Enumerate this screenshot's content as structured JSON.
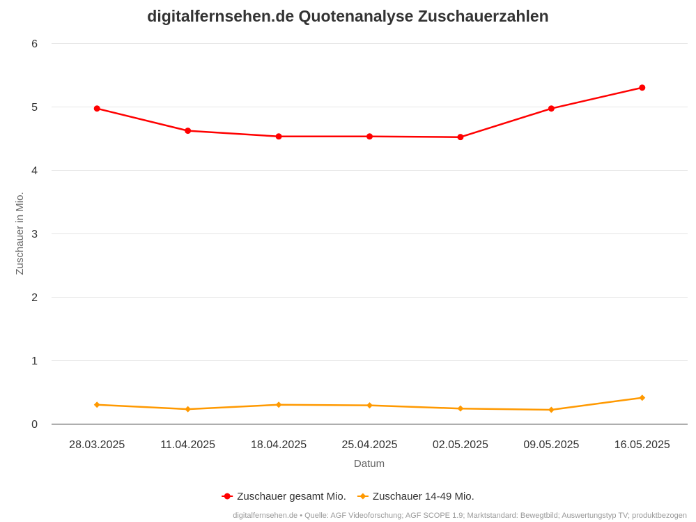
{
  "chart_data": {
    "type": "line",
    "title": "digitalfernsehen.de Quotenanalyse Zuschauerzahlen",
    "xlabel": "Datum",
    "ylabel": "Zuschauer in Mio.",
    "categories": [
      "28.03.2025",
      "11.04.2025",
      "18.04.2025",
      "25.04.2025",
      "02.05.2025",
      "09.05.2025",
      "16.05.2025"
    ],
    "ylim": [
      0,
      6
    ],
    "yticks": [
      "0",
      "1",
      "2",
      "3",
      "4",
      "5",
      "6"
    ],
    "grid": true,
    "legend_position": "bottom",
    "series": [
      {
        "name": "Zuschauer gesamt Mio.",
        "color": "#ff0000",
        "marker": "circle",
        "values": [
          4.97,
          4.62,
          4.53,
          4.53,
          4.52,
          4.97,
          5.3
        ]
      },
      {
        "name": "Zuschauer 14-49 Mio.",
        "color": "#ff9900",
        "marker": "diamond",
        "values": [
          0.3,
          0.23,
          0.3,
          0.29,
          0.24,
          0.22,
          0.41
        ]
      }
    ],
    "credits": "digitalfernsehen.de • Quelle: AGF Videoforschung; AGF SCOPE 1.9; Marktstandard: Bewegtbild; Auswertungstyp TV; produktbezogen"
  }
}
